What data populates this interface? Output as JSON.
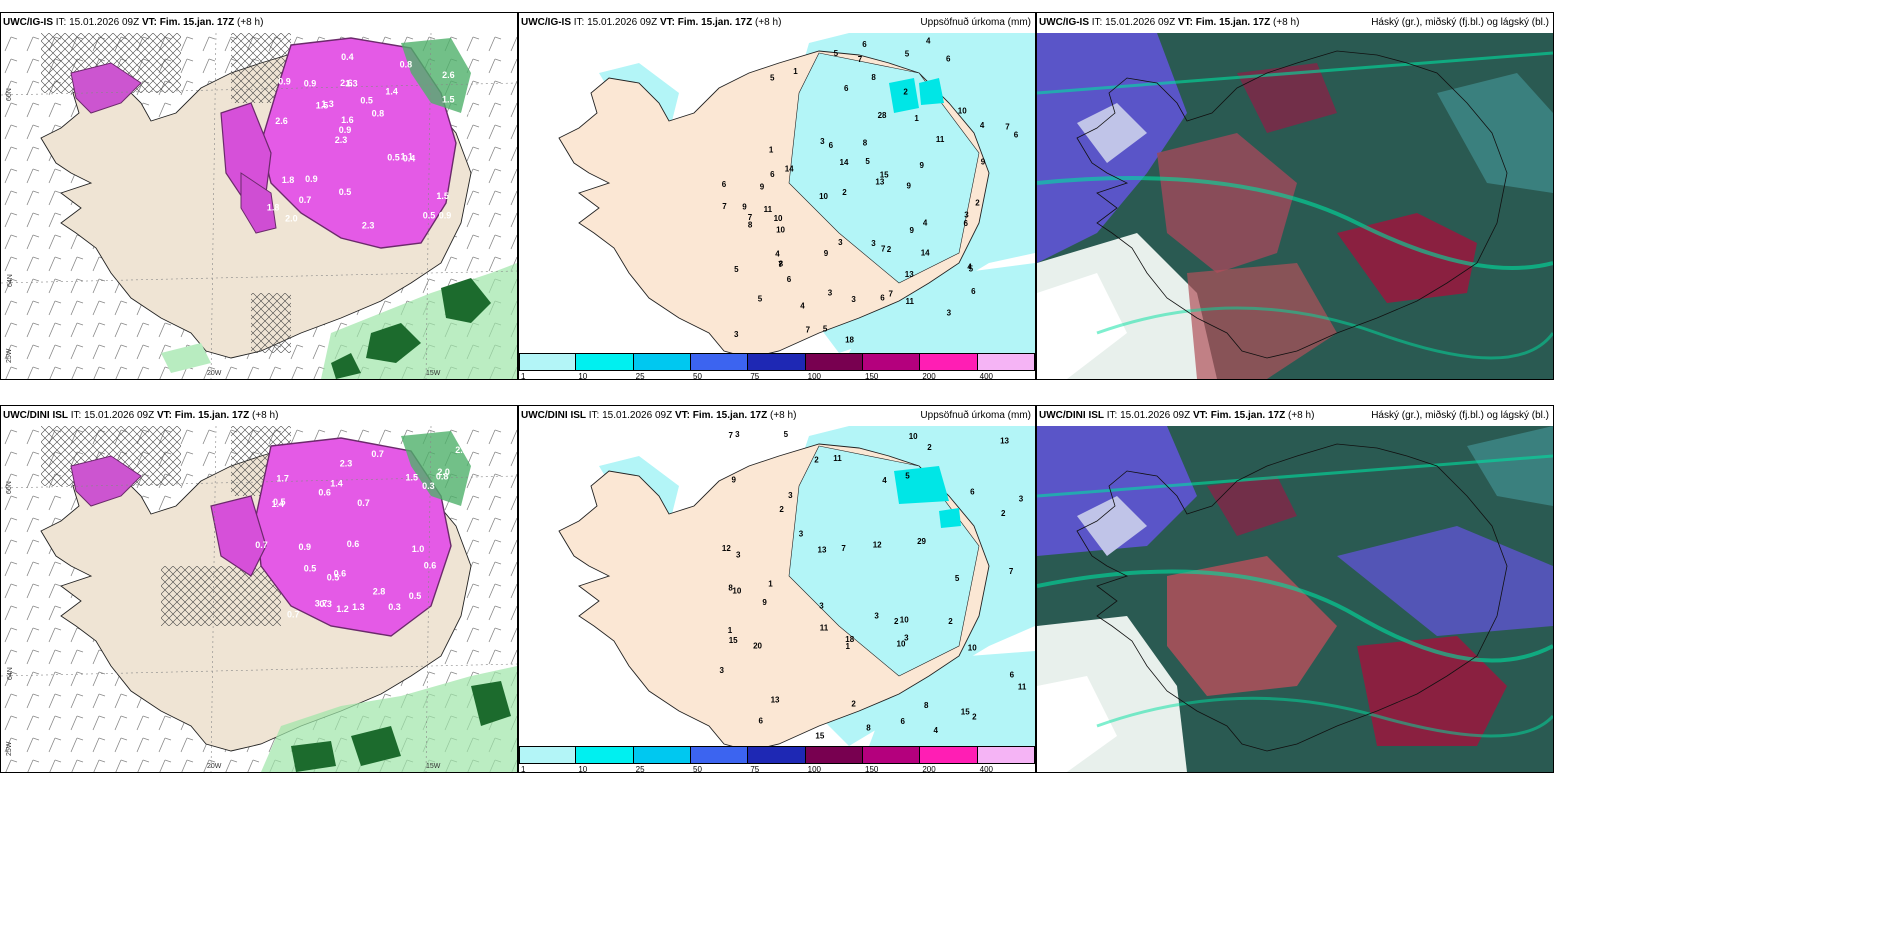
{
  "panels": [
    {
      "model": "UWC/IG-IS",
      "it": "IT: 15.01.2026 09Z",
      "vt_label": "VT:",
      "vt": "Fim. 15.jan. 17Z",
      "lead": "(+8 h)",
      "right_title": ""
    },
    {
      "model": "UWC/IG-IS",
      "it": "IT: 15.01.2026 09Z",
      "vt_label": "VT:",
      "vt": "Fim. 15.jan. 17Z",
      "lead": "(+8 h)",
      "right_title": "Uppsöfnuð úrkoma (mm)"
    },
    {
      "model": "UWC/IG-IS",
      "it": "IT: 15.01.2026 09Z",
      "vt_label": "VT:",
      "vt": "Fim. 15.jan. 17Z",
      "lead": "(+8 h)",
      "right_title": "Háský (gr.), miðský (fj.bl.) og lágský (bl.)"
    },
    {
      "model": "UWC/DINI ISL",
      "it": "IT: 15.01.2026 09Z",
      "vt_label": "VT:",
      "vt": "Fim. 15.jan. 17Z",
      "lead": "(+8 h)",
      "right_title": ""
    },
    {
      "model": "UWC/DINI ISL",
      "it": "IT: 15.01.2026 09Z",
      "vt_label": "VT:",
      "vt": "Fim. 15.jan. 17Z",
      "lead": "(+8 h)",
      "right_title": "Uppsöfnuð úrkoma (mm)"
    },
    {
      "model": "UWC/DINI ISL",
      "it": "IT: 15.01.2026 09Z",
      "vt_label": "VT:",
      "vt": "Fim. 15.jan. 17Z",
      "lead": "(+8 h)",
      "right_title": "Háský (gr.), miðský (fj.bl.) og lágský (bl.)"
    }
  ],
  "axes": {
    "lat66": "66N",
    "lat64": "64N",
    "lon25": "25W",
    "lon20": "20W",
    "lon15": "15W"
  },
  "colorbar": {
    "ticks": [
      "1",
      "10",
      "25",
      "50",
      "75",
      "100",
      "150",
      "200",
      "400"
    ],
    "colors": [
      "#b3f5f7",
      "#00f0f0",
      "#00c8f0",
      "#3c64f0",
      "#1e28b4",
      "#780050",
      "#b4007d",
      "#ff1eb4",
      "#f5b4f5"
    ]
  },
  "precip_top": [
    "5",
    "6",
    "1",
    "10",
    "7",
    "14",
    "10",
    "8",
    "4",
    "11",
    "9",
    "6",
    "14",
    "13",
    "18",
    "5",
    "6",
    "6",
    "7",
    "5",
    "11",
    "7",
    "6",
    "15",
    "5",
    "3",
    "7",
    "5",
    "28",
    "4",
    "1",
    "6",
    "7",
    "3",
    "5",
    "8",
    "7",
    "9",
    "1",
    "3",
    "6",
    "8",
    "3",
    "10",
    "7",
    "6",
    "9",
    "6",
    "9",
    "13",
    "6",
    "7",
    "8",
    "9",
    "10",
    "2",
    "3",
    "4",
    "5",
    "9",
    "3",
    "4",
    "2",
    "2",
    "3",
    "5",
    "4",
    "9",
    "2",
    "3",
    "6",
    "4",
    "14",
    "11"
  ],
  "precip_bottom": [
    "3",
    "3",
    "13",
    "10",
    "3",
    "7",
    "5",
    "10",
    "13",
    "12",
    "13",
    "12",
    "20",
    "18",
    "10",
    "6",
    "29",
    "15",
    "15",
    "2",
    "1",
    "2",
    "1",
    "6",
    "7",
    "10",
    "8",
    "10",
    "9",
    "11",
    "7",
    "11",
    "11",
    "9",
    "3",
    "5",
    "4",
    "3",
    "2",
    "3",
    "1",
    "4",
    "3",
    "2",
    "2",
    "3",
    "15",
    "6",
    "2",
    "2",
    "5",
    "6",
    "8",
    "3",
    "2",
    "8"
  ],
  "snow_top": [
    "0.9",
    "2.6",
    "2.6",
    "2.3",
    "1.4",
    "2.0",
    "2.6",
    "0.5",
    "1.8",
    "1.3",
    "1.8",
    "0.7",
    "1.3",
    "0.8",
    "0.4",
    "0.9",
    "0.4",
    "0.6",
    "0.5",
    "1.5",
    "0.9",
    "0.5",
    "1.6",
    "0.9",
    "0.8",
    "0.9",
    "0.5",
    "1.5",
    "1.1",
    "2.3",
    "1.5"
  ],
  "snow_bottom": [
    "0.5",
    "0.6",
    "0.7",
    "0.7",
    "2.3",
    "3.7",
    "2.1",
    "2.0",
    "2.8",
    "1.4",
    "1.7",
    "1.5",
    "0.8",
    "0.6",
    "0.5",
    "0.3",
    "0.9",
    "0.7",
    "0.5",
    "1.0",
    "0.3",
    "0.7",
    "1.2",
    "0.6",
    "0.5",
    "1.3",
    "1.4",
    "0.6",
    "0.3"
  ]
}
